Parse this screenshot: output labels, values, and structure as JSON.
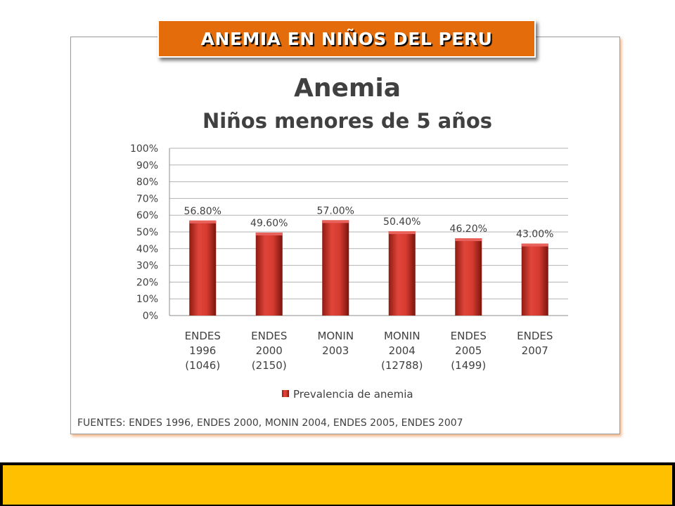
{
  "banner": {
    "title": "ANEMIA EN NIÑOS DEL PERU"
  },
  "colors": {
    "banner": "#e46c0a",
    "bar": "#c0392b",
    "footer": "#ffc000"
  },
  "chart_data": {
    "type": "bar",
    "title": "Anemia",
    "subtitle": "Niños menores de 5 años",
    "categories": [
      [
        "ENDES",
        "1996",
        "(1046)"
      ],
      [
        "ENDES",
        "2000",
        "(2150)"
      ],
      [
        "MONIN",
        "2003"
      ],
      [
        "MONIN",
        "2004",
        "(12788)"
      ],
      [
        "ENDES",
        "2005",
        "(1499)"
      ],
      [
        "ENDES",
        "2007"
      ]
    ],
    "series": [
      {
        "name": "Prevalencia de anemia",
        "values": [
          56.8,
          49.6,
          57.0,
          50.4,
          46.2,
          43.0
        ],
        "labels": [
          "56.80%",
          "49.60%",
          "57.00%",
          "50.40%",
          "46.20%",
          "43.00%"
        ]
      }
    ],
    "ylim": [
      0,
      100
    ],
    "yticks": [
      "0%",
      "10%",
      "20%",
      "30%",
      "40%",
      "50%",
      "60%",
      "70%",
      "80%",
      "90%",
      "100%"
    ],
    "grid": true,
    "legend": "bottom",
    "source": "FUENTES:  ENDES 1996, ENDES 2000, MONIN 2004, ENDES 2005, ENDES 2007"
  }
}
